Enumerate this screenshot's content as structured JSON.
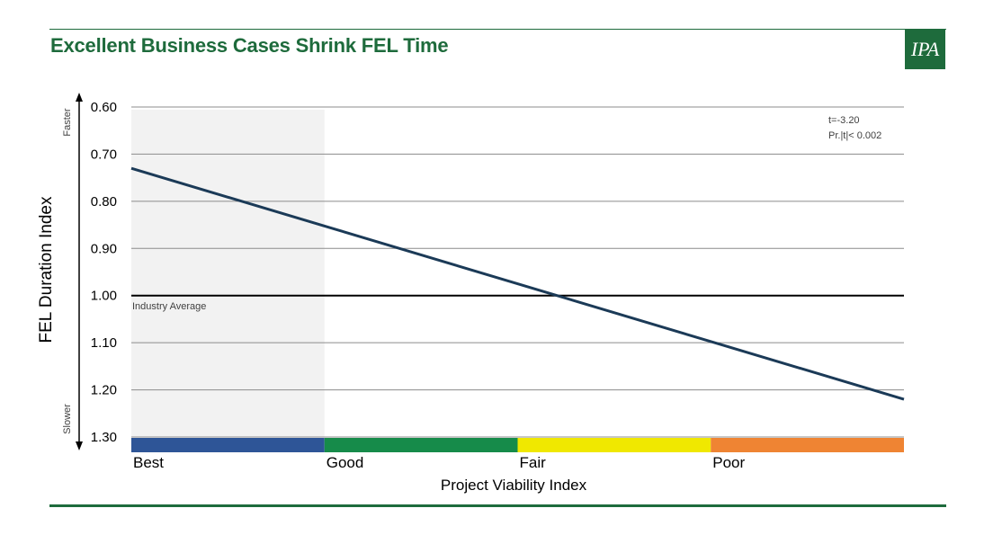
{
  "page": {
    "title": "Excellent Business Cases Shrink FEL Time",
    "logo_text": "IPA"
  },
  "colors": {
    "brand_green": "#1e6b3c",
    "line": "#1b3a57",
    "shaded_band": "#f2f2f2"
  },
  "chart_data": {
    "type": "line",
    "ylabel": "FEL Duration Index",
    "xlabel": "Project Viability Index",
    "y_inverted": true,
    "ylim": [
      0.6,
      1.3
    ],
    "yticks": [
      "0.60",
      "0.70",
      "0.80",
      "0.90",
      "1.00",
      "1.10",
      "1.20",
      "1.30"
    ],
    "ytick_values": [
      0.6,
      0.7,
      0.8,
      0.9,
      1.0,
      1.1,
      1.2,
      1.3
    ],
    "y_direction_labels": {
      "top": "Faster",
      "bottom": "Slower"
    },
    "grid": true,
    "categories": [
      "Best",
      "Good",
      "Fair",
      "Poor"
    ],
    "category_colors": [
      "#2e5597",
      "#168b4a",
      "#f0e800",
      "#ef8433"
    ],
    "shaded_category": "Best",
    "xlim": [
      0,
      4
    ],
    "series": [
      {
        "x": [
          0,
          4
        ],
        "values": [
          0.73,
          1.22
        ]
      }
    ],
    "reference_line": {
      "value": 1.0,
      "label": "Industry Average"
    },
    "annotation": [
      "t=-3.20",
      "Pr.|t|< 0.002"
    ]
  }
}
